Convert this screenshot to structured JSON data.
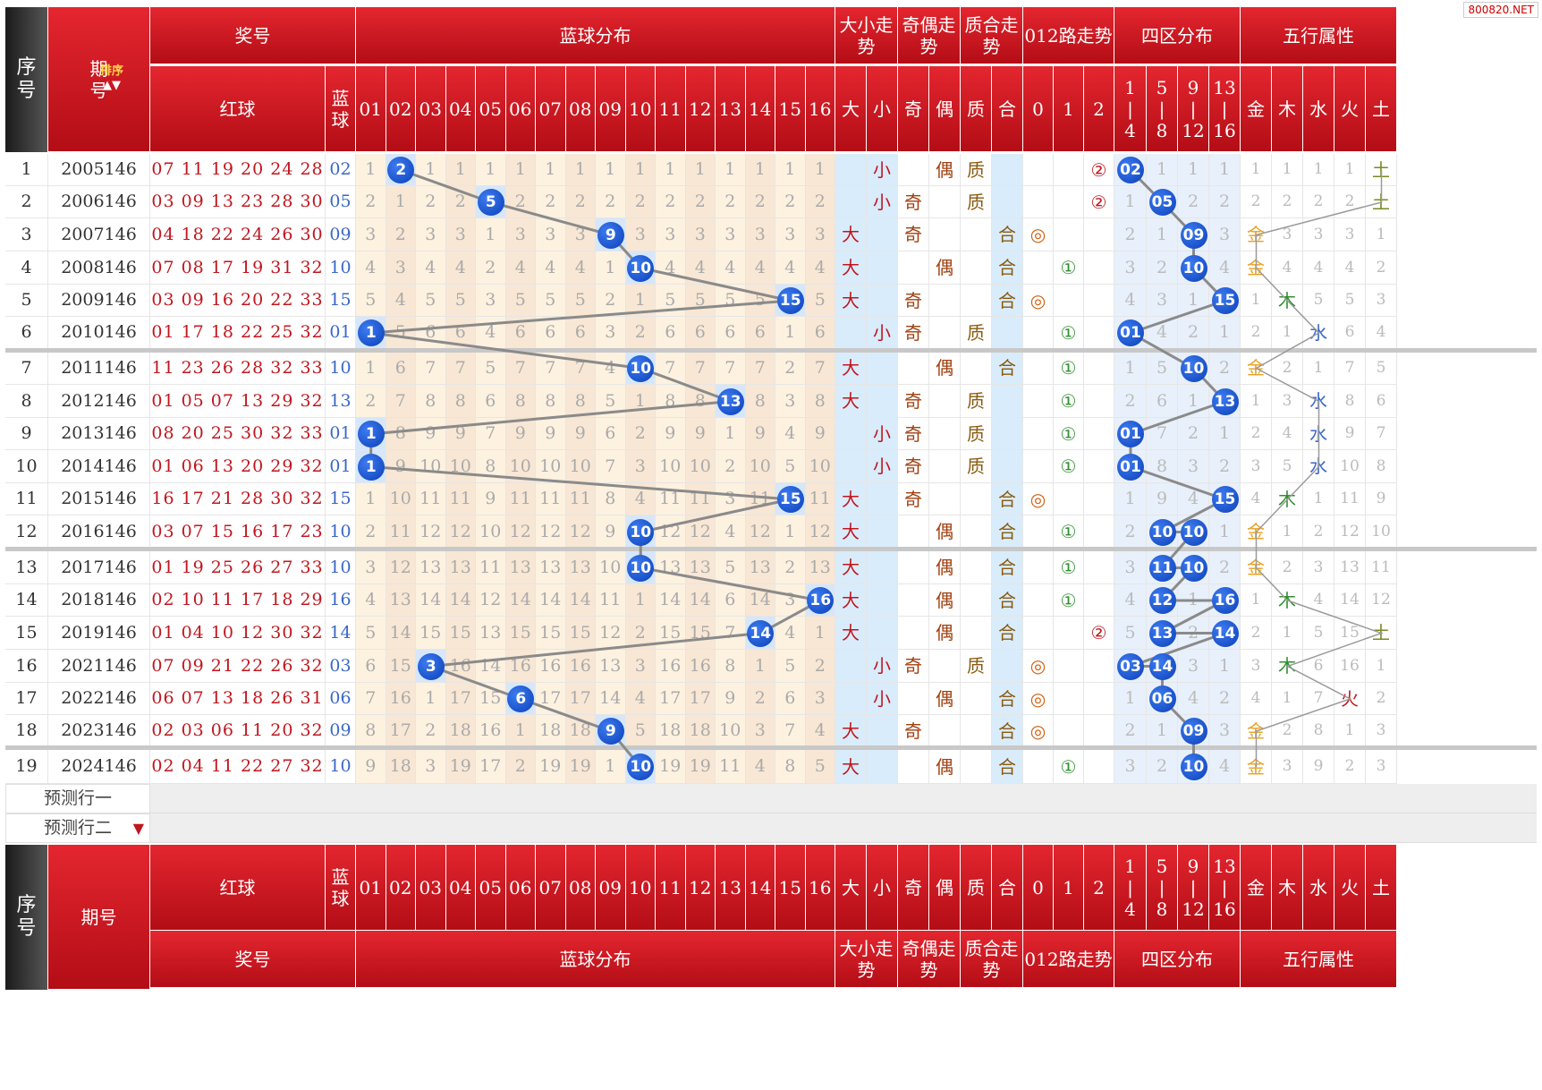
{
  "watermark": "800820.NET",
  "header": {
    "seq": [
      "序",
      "号"
    ],
    "period": [
      "期",
      "号"
    ],
    "sort": "排序",
    "prize": "奖号",
    "blue_dist": "蓝球分布",
    "big_small": "大小走势",
    "odd_even": "奇偶走势",
    "prime": "质合走势",
    "r012": "012路走势",
    "quad": "四区分布",
    "wuxing": "五行属性",
    "red": "红球",
    "blue_lab": [
      "蓝",
      "球"
    ],
    "nums": [
      "01",
      "02",
      "03",
      "04",
      "05",
      "06",
      "07",
      "08",
      "09",
      "10",
      "11",
      "12",
      "13",
      "14",
      "15",
      "16"
    ],
    "dx": [
      "大",
      "小"
    ],
    "jo": [
      "奇",
      "偶"
    ],
    "zh": [
      "质",
      "合"
    ],
    "l012": [
      "0",
      "1",
      "2"
    ],
    "quads": [
      [
        "1",
        "|",
        "4"
      ],
      [
        "5",
        "|",
        "8"
      ],
      [
        "9",
        "|",
        "12"
      ],
      [
        "13",
        "|",
        "16"
      ]
    ],
    "wx": [
      "金",
      "木",
      "水",
      "火",
      "土"
    ],
    "period_bottom": "期号"
  },
  "rows": [
    {
      "i": "1",
      "p": "2005146",
      "r": "07 11 19 20 24 28",
      "b": "02",
      "miss": [
        "1",
        "2",
        "1",
        "1",
        "1",
        "1",
        "1",
        "1",
        "1",
        "1",
        "1",
        "1",
        "1",
        "1",
        "1",
        "1"
      ],
      "dx": [
        "",
        "小"
      ],
      "jo": [
        "",
        "偶"
      ],
      "zh": [
        "质",
        ""
      ],
      "l": [
        "",
        "",
        "②"
      ],
      "q": [
        "02",
        "1",
        "1",
        "1"
      ],
      "w": [
        "1",
        "1",
        "1",
        "1",
        "土"
      ]
    },
    {
      "i": "2",
      "p": "2006146",
      "r": "03 09 13 23 28 30",
      "b": "05",
      "miss": [
        "2",
        "1",
        "2",
        "2",
        "5",
        "2",
        "2",
        "2",
        "2",
        "2",
        "2",
        "2",
        "2",
        "2",
        "2",
        "2"
      ],
      "dx": [
        "",
        "小"
      ],
      "jo": [
        "奇",
        ""
      ],
      "zh": [
        "质",
        ""
      ],
      "l": [
        "",
        "",
        "②"
      ],
      "q": [
        "1",
        "05",
        "2",
        "2"
      ],
      "w": [
        "2",
        "2",
        "2",
        "2",
        "土"
      ]
    },
    {
      "i": "3",
      "p": "2007146",
      "r": "04 18 22 24 26 30",
      "b": "09",
      "miss": [
        "3",
        "2",
        "3",
        "3",
        "1",
        "3",
        "3",
        "3",
        "9",
        "3",
        "3",
        "3",
        "3",
        "3",
        "3",
        "3"
      ],
      "dx": [
        "大",
        ""
      ],
      "jo": [
        "奇",
        ""
      ],
      "zh": [
        "",
        "合"
      ],
      "l": [
        "◎",
        "",
        ""
      ],
      "q": [
        "2",
        "1",
        "09",
        "3"
      ],
      "w": [
        "金",
        "3",
        "3",
        "3",
        "1"
      ]
    },
    {
      "i": "4",
      "p": "2008146",
      "r": "07 08 17 19 31 32",
      "b": "10",
      "miss": [
        "4",
        "3",
        "4",
        "4",
        "2",
        "4",
        "4",
        "4",
        "1",
        "10",
        "4",
        "4",
        "4",
        "4",
        "4",
        "4"
      ],
      "dx": [
        "大",
        ""
      ],
      "jo": [
        "",
        "偶"
      ],
      "zh": [
        "",
        "合"
      ],
      "l": [
        "",
        "①",
        ""
      ],
      "q": [
        "3",
        "2",
        "10",
        "4"
      ],
      "w": [
        "金",
        "4",
        "4",
        "4",
        "2"
      ]
    },
    {
      "i": "5",
      "p": "2009146",
      "r": "03 09 16 20 22 33",
      "b": "15",
      "miss": [
        "5",
        "4",
        "5",
        "5",
        "3",
        "5",
        "5",
        "5",
        "2",
        "1",
        "5",
        "5",
        "5",
        "5",
        "15",
        "5"
      ],
      "dx": [
        "大",
        ""
      ],
      "jo": [
        "奇",
        ""
      ],
      "zh": [
        "",
        "合"
      ],
      "l": [
        "◎",
        "",
        ""
      ],
      "q": [
        "4",
        "3",
        "1",
        "15"
      ],
      "w": [
        "1",
        "木",
        "5",
        "5",
        "3"
      ]
    },
    {
      "i": "6",
      "p": "2010146",
      "r": "01 17 18 22 25 32",
      "b": "01",
      "miss": [
        "1",
        "5",
        "6",
        "6",
        "4",
        "6",
        "6",
        "6",
        "3",
        "2",
        "6",
        "6",
        "6",
        "6",
        "1",
        "6"
      ],
      "dx": [
        "",
        "小"
      ],
      "jo": [
        "奇",
        ""
      ],
      "zh": [
        "质",
        ""
      ],
      "l": [
        "",
        "①",
        ""
      ],
      "q": [
        "01",
        "4",
        "2",
        "1"
      ],
      "w": [
        "2",
        "1",
        "水",
        "6",
        "4"
      ]
    },
    {
      "i": "7",
      "p": "2011146",
      "r": "11 23 26 28 32 33",
      "b": "10",
      "miss": [
        "1",
        "6",
        "7",
        "7",
        "5",
        "7",
        "7",
        "7",
        "4",
        "10",
        "7",
        "7",
        "7",
        "7",
        "2",
        "7"
      ],
      "dx": [
        "大",
        ""
      ],
      "jo": [
        "",
        "偶"
      ],
      "zh": [
        "",
        "合"
      ],
      "l": [
        "",
        "①",
        ""
      ],
      "q": [
        "1",
        "5",
        "10",
        "2"
      ],
      "w": [
        "金",
        "2",
        "1",
        "7",
        "5"
      ]
    },
    {
      "i": "8",
      "p": "2012146",
      "r": "01 05 07 13 29 32",
      "b": "13",
      "miss": [
        "2",
        "7",
        "8",
        "8",
        "6",
        "8",
        "8",
        "8",
        "5",
        "1",
        "8",
        "8",
        "13",
        "8",
        "3",
        "8"
      ],
      "dx": [
        "大",
        ""
      ],
      "jo": [
        "奇",
        ""
      ],
      "zh": [
        "质",
        ""
      ],
      "l": [
        "",
        "①",
        ""
      ],
      "q": [
        "2",
        "6",
        "1",
        "13"
      ],
      "w": [
        "1",
        "3",
        "水",
        "8",
        "6"
      ]
    },
    {
      "i": "9",
      "p": "2013146",
      "r": "08 20 25 30 32 33",
      "b": "01",
      "miss": [
        "1",
        "8",
        "9",
        "9",
        "7",
        "9",
        "9",
        "9",
        "6",
        "2",
        "9",
        "9",
        "1",
        "9",
        "4",
        "9"
      ],
      "dx": [
        "",
        "小"
      ],
      "jo": [
        "奇",
        ""
      ],
      "zh": [
        "质",
        ""
      ],
      "l": [
        "",
        "①",
        ""
      ],
      "q": [
        "01",
        "7",
        "2",
        "1"
      ],
      "w": [
        "2",
        "4",
        "水",
        "9",
        "7"
      ]
    },
    {
      "i": "10",
      "p": "2014146",
      "r": "01 06 13 20 29 32",
      "b": "01",
      "miss": [
        "1",
        "9",
        "10",
        "10",
        "8",
        "10",
        "10",
        "10",
        "7",
        "3",
        "10",
        "10",
        "2",
        "10",
        "5",
        "10"
      ],
      "dx": [
        "",
        "小"
      ],
      "jo": [
        "奇",
        ""
      ],
      "zh": [
        "质",
        ""
      ],
      "l": [
        "",
        "①",
        ""
      ],
      "q": [
        "01",
        "8",
        "3",
        "2"
      ],
      "w": [
        "3",
        "5",
        "水",
        "10",
        "8"
      ]
    },
    {
      "i": "11",
      "p": "2015146",
      "r": "16 17 21 28 30 32",
      "b": "15",
      "miss": [
        "1",
        "10",
        "11",
        "11",
        "9",
        "11",
        "11",
        "11",
        "8",
        "4",
        "11",
        "11",
        "3",
        "11",
        "15",
        "11"
      ],
      "dx": [
        "大",
        ""
      ],
      "jo": [
        "奇",
        ""
      ],
      "zh": [
        "",
        "合"
      ],
      "l": [
        "◎",
        "",
        ""
      ],
      "q": [
        "1",
        "9",
        "4",
        "15"
      ],
      "w": [
        "4",
        "木",
        "1",
        "11",
        "9"
      ]
    },
    {
      "i": "12",
      "p": "2016146",
      "r": "03 07 15 16 17 23",
      "b": "10",
      "miss": [
        "2",
        "11",
        "12",
        "12",
        "10",
        "12",
        "12",
        "12",
        "9",
        "10",
        "12",
        "12",
        "4",
        "12",
        "1",
        "12"
      ],
      "dx": [
        "大",
        ""
      ],
      "jo": [
        "",
        "偶"
      ],
      "zh": [
        "",
        "合"
      ],
      "l": [
        "",
        "①",
        ""
      ],
      "q": [
        "2",
        "10",
        "10",
        "1"
      ],
      "w": [
        "金",
        "1",
        "2",
        "12",
        "10"
      ]
    },
    {
      "i": "13",
      "p": "2017146",
      "r": "01 19 25 26 27 33",
      "b": "10",
      "miss": [
        "3",
        "12",
        "13",
        "13",
        "11",
        "13",
        "13",
        "13",
        "10",
        "10",
        "13",
        "13",
        "5",
        "13",
        "2",
        "13"
      ],
      "dx": [
        "大",
        ""
      ],
      "jo": [
        "",
        "偶"
      ],
      "zh": [
        "",
        "合"
      ],
      "l": [
        "",
        "①",
        ""
      ],
      "q": [
        "3",
        "11",
        "10",
        "2"
      ],
      "w": [
        "金",
        "2",
        "3",
        "13",
        "11"
      ]
    },
    {
      "i": "14",
      "p": "2018146",
      "r": "02 10 11 17 18 29",
      "b": "16",
      "miss": [
        "4",
        "13",
        "14",
        "14",
        "12",
        "14",
        "14",
        "14",
        "11",
        "1",
        "14",
        "14",
        "6",
        "14",
        "3",
        "16"
      ],
      "dx": [
        "大",
        ""
      ],
      "jo": [
        "",
        "偶"
      ],
      "zh": [
        "",
        "合"
      ],
      "l": [
        "",
        "①",
        ""
      ],
      "q": [
        "4",
        "12",
        "1",
        "16"
      ],
      "w": [
        "1",
        "木",
        "4",
        "14",
        "12"
      ]
    },
    {
      "i": "15",
      "p": "2019146",
      "r": "01 04 10 12 30 32",
      "b": "14",
      "miss": [
        "5",
        "14",
        "15",
        "15",
        "13",
        "15",
        "15",
        "15",
        "12",
        "2",
        "15",
        "15",
        "7",
        "14",
        "4",
        "1"
      ],
      "dx": [
        "大",
        ""
      ],
      "jo": [
        "",
        "偶"
      ],
      "zh": [
        "",
        "合"
      ],
      "l": [
        "",
        "",
        "②"
      ],
      "q": [
        "5",
        "13",
        "2",
        "14"
      ],
      "w": [
        "2",
        "1",
        "5",
        "15",
        "土"
      ]
    },
    {
      "i": "16",
      "p": "2021146",
      "r": "07 09 21 22 26 32",
      "b": "03",
      "miss": [
        "6",
        "15",
        "3",
        "16",
        "14",
        "16",
        "16",
        "16",
        "13",
        "3",
        "16",
        "16",
        "8",
        "1",
        "5",
        "2"
      ],
      "dx": [
        "",
        "小"
      ],
      "jo": [
        "奇",
        ""
      ],
      "zh": [
        "质",
        ""
      ],
      "l": [
        "◎",
        "",
        ""
      ],
      "q": [
        "03",
        "14",
        "3",
        "1"
      ],
      "w": [
        "3",
        "木",
        "6",
        "16",
        "1"
      ]
    },
    {
      "i": "17",
      "p": "2022146",
      "r": "06 07 13 18 26 31",
      "b": "06",
      "miss": [
        "7",
        "16",
        "1",
        "17",
        "15",
        "6",
        "17",
        "17",
        "14",
        "4",
        "17",
        "17",
        "9",
        "2",
        "6",
        "3"
      ],
      "dx": [
        "",
        "小"
      ],
      "jo": [
        "",
        "偶"
      ],
      "zh": [
        "",
        "合"
      ],
      "l": [
        "◎",
        "",
        ""
      ],
      "q": [
        "1",
        "06",
        "4",
        "2"
      ],
      "w": [
        "4",
        "1",
        "7",
        "火",
        "2"
      ]
    },
    {
      "i": "18",
      "p": "2023146",
      "r": "02 03 06 11 20 32",
      "b": "09",
      "miss": [
        "8",
        "17",
        "2",
        "18",
        "16",
        "1",
        "18",
        "18",
        "9",
        "5",
        "18",
        "18",
        "10",
        "3",
        "7",
        "4"
      ],
      "dx": [
        "大",
        ""
      ],
      "jo": [
        "奇",
        ""
      ],
      "zh": [
        "",
        "合"
      ],
      "l": [
        "◎",
        "",
        ""
      ],
      "q": [
        "2",
        "1",
        "09",
        "3"
      ],
      "w": [
        "金",
        "2",
        "8",
        "1",
        "3"
      ]
    },
    {
      "i": "19",
      "p": "2024146",
      "r": "02 04 11 22 27 32",
      "b": "10",
      "miss": [
        "9",
        "18",
        "3",
        "19",
        "17",
        "2",
        "19",
        "19",
        "1",
        "10",
        "19",
        "19",
        "11",
        "4",
        "8",
        "5"
      ],
      "dx": [
        "大",
        ""
      ],
      "jo": [
        "",
        "偶"
      ],
      "zh": [
        "",
        "合"
      ],
      "l": [
        "",
        "①",
        ""
      ],
      "q": [
        "3",
        "2",
        "10",
        "4"
      ],
      "w": [
        "金",
        "3",
        "9",
        "2",
        "3"
      ]
    }
  ],
  "pred": [
    "预测行一",
    "预测行二"
  ],
  "colors": {
    "header": "#c8151e",
    "ball": "#1046c4",
    "wx_gold": "#e8a020",
    "wx_wood": "#2f8f2f",
    "wx_water": "#3a67c9",
    "wx_fire": "#c0161e",
    "wx_earth": "#7a8a20"
  }
}
